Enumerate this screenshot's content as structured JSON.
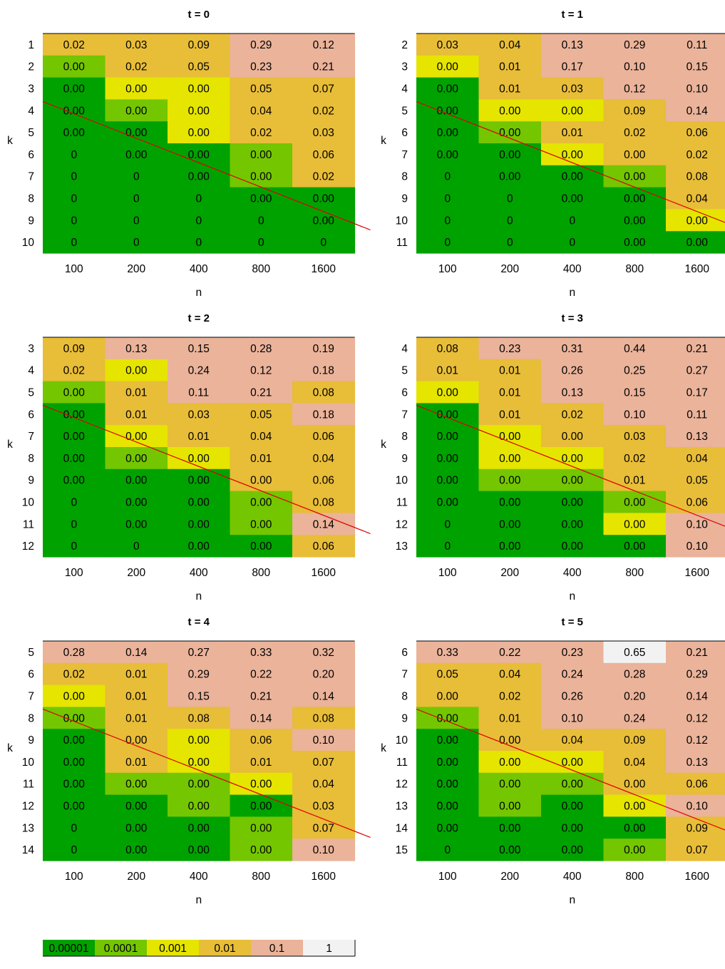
{
  "colorscale": {
    "labels": [
      "0.00001",
      "0.0001",
      "0.001",
      "0.01",
      "0.1",
      "1"
    ],
    "colors": [
      "#00a200",
      "#74c600",
      "#e5e500",
      "#e8bd38",
      "#eab39a",
      "#f2f2f2"
    ]
  },
  "chart_data": [
    {
      "type": "heatmap",
      "title": "t = 0",
      "xlabel": "n",
      "ylabel": "k",
      "x": [
        "100",
        "200",
        "400",
        "800",
        "1600"
      ],
      "y": [
        "1",
        "2",
        "3",
        "4",
        "5",
        "6",
        "7",
        "8",
        "9",
        "10"
      ],
      "values": [
        [
          "0.02",
          "0.03",
          "0.09",
          "0.29",
          "0.12"
        ],
        [
          "0.00",
          "0.02",
          "0.05",
          "0.23",
          "0.21"
        ],
        [
          "0.00",
          "0.00",
          "0.00",
          "0.05",
          "0.07"
        ],
        [
          "0.00",
          "0.00",
          "0.00",
          "0.04",
          "0.02"
        ],
        [
          "0.00",
          "0.00",
          "0.00",
          "0.02",
          "0.03"
        ],
        [
          "0",
          "0.00",
          "0.00",
          "0.00",
          "0.06"
        ],
        [
          "0",
          "0",
          "0.00",
          "0.00",
          "0.02"
        ],
        [
          "0",
          "0",
          "0",
          "0.00",
          "0.00"
        ],
        [
          "0",
          "0",
          "0",
          "0",
          "0.00"
        ],
        [
          "0",
          "0",
          "0",
          "0",
          "0"
        ]
      ],
      "levels": [
        [
          3,
          3,
          3,
          4,
          4
        ],
        [
          1,
          3,
          3,
          4,
          4
        ],
        [
          0,
          2,
          2,
          3,
          3
        ],
        [
          0,
          1,
          2,
          3,
          3
        ],
        [
          0,
          0,
          2,
          3,
          3
        ],
        [
          0,
          0,
          0,
          1,
          3
        ],
        [
          0,
          0,
          0,
          1,
          3
        ],
        [
          0,
          0,
          0,
          0,
          0
        ],
        [
          0,
          0,
          0,
          0,
          0
        ],
        [
          0,
          0,
          0,
          0,
          0
        ]
      ],
      "trend_line": [
        [
          100,
          3.6
        ],
        [
          1600,
          8.05
        ]
      ]
    },
    {
      "type": "heatmap",
      "title": "t = 1",
      "xlabel": "n",
      "ylabel": "k",
      "x": [
        "100",
        "200",
        "400",
        "800",
        "1600"
      ],
      "y": [
        "2",
        "3",
        "4",
        "5",
        "6",
        "7",
        "8",
        "9",
        "10",
        "11"
      ],
      "values": [
        [
          "0.03",
          "0.04",
          "0.13",
          "0.29",
          "0.11"
        ],
        [
          "0.00",
          "0.01",
          "0.17",
          "0.10",
          "0.15"
        ],
        [
          "0.00",
          "0.01",
          "0.03",
          "0.12",
          "0.10"
        ],
        [
          "0.00",
          "0.00",
          "0.00",
          "0.09",
          "0.14"
        ],
        [
          "0.00",
          "0.00",
          "0.01",
          "0.02",
          "0.06"
        ],
        [
          "0.00",
          "0.00",
          "0.00",
          "0.00",
          "0.02"
        ],
        [
          "0",
          "0.00",
          "0.00",
          "0.00",
          "0.08"
        ],
        [
          "0",
          "0",
          "0.00",
          "0.00",
          "0.04"
        ],
        [
          "0",
          "0",
          "0",
          "0.00",
          "0.00"
        ],
        [
          "0",
          "0",
          "0",
          "0.00",
          "0.00"
        ]
      ],
      "levels": [
        [
          3,
          3,
          4,
          4,
          4
        ],
        [
          2,
          3,
          4,
          4,
          4
        ],
        [
          0,
          3,
          3,
          4,
          4
        ],
        [
          0,
          2,
          2,
          3,
          4
        ],
        [
          0,
          1,
          3,
          3,
          3
        ],
        [
          0,
          0,
          2,
          3,
          3
        ],
        [
          0,
          0,
          0,
          1,
          3
        ],
        [
          0,
          0,
          0,
          0,
          3
        ],
        [
          0,
          0,
          0,
          0,
          2
        ],
        [
          0,
          0,
          0,
          0,
          0
        ]
      ],
      "trend_line": [
        [
          100,
          4.6
        ],
        [
          1600,
          9.05
        ]
      ]
    },
    {
      "type": "heatmap",
      "title": "t = 2",
      "xlabel": "n",
      "ylabel": "k",
      "x": [
        "100",
        "200",
        "400",
        "800",
        "1600"
      ],
      "y": [
        "3",
        "4",
        "5",
        "6",
        "7",
        "8",
        "9",
        "10",
        "11",
        "12"
      ],
      "values": [
        [
          "0.09",
          "0.13",
          "0.15",
          "0.28",
          "0.19"
        ],
        [
          "0.02",
          "0.00",
          "0.24",
          "0.12",
          "0.18"
        ],
        [
          "0.00",
          "0.01",
          "0.11",
          "0.21",
          "0.08"
        ],
        [
          "0.00",
          "0.01",
          "0.03",
          "0.05",
          "0.18"
        ],
        [
          "0.00",
          "0.00",
          "0.01",
          "0.04",
          "0.06"
        ],
        [
          "0.00",
          "0.00",
          "0.00",
          "0.01",
          "0.04"
        ],
        [
          "0.00",
          "0.00",
          "0.00",
          "0.00",
          "0.06"
        ],
        [
          "0",
          "0.00",
          "0.00",
          "0.00",
          "0.08"
        ],
        [
          "0",
          "0.00",
          "0.00",
          "0.00",
          "0.14"
        ],
        [
          "0",
          "0",
          "0.00",
          "0.00",
          "0.06"
        ]
      ],
      "levels": [
        [
          3,
          4,
          4,
          4,
          4
        ],
        [
          3,
          2,
          4,
          4,
          4
        ],
        [
          1,
          3,
          4,
          4,
          3
        ],
        [
          0,
          3,
          3,
          3,
          4
        ],
        [
          0,
          2,
          3,
          3,
          3
        ],
        [
          0,
          1,
          2,
          3,
          3
        ],
        [
          0,
          0,
          0,
          3,
          3
        ],
        [
          0,
          0,
          0,
          1,
          3
        ],
        [
          0,
          0,
          0,
          1,
          4
        ],
        [
          0,
          0,
          0,
          0,
          3
        ]
      ],
      "trend_line": [
        [
          100,
          5.6
        ],
        [
          1600,
          10.05
        ]
      ]
    },
    {
      "type": "heatmap",
      "title": "t = 3",
      "xlabel": "n",
      "ylabel": "k",
      "x": [
        "100",
        "200",
        "400",
        "800",
        "1600"
      ],
      "y": [
        "4",
        "5",
        "6",
        "7",
        "8",
        "9",
        "10",
        "11",
        "12",
        "13"
      ],
      "values": [
        [
          "0.08",
          "0.23",
          "0.31",
          "0.44",
          "0.21"
        ],
        [
          "0.01",
          "0.01",
          "0.26",
          "0.25",
          "0.27"
        ],
        [
          "0.00",
          "0.01",
          "0.13",
          "0.15",
          "0.17"
        ],
        [
          "0.00",
          "0.01",
          "0.02",
          "0.10",
          "0.11"
        ],
        [
          "0.00",
          "0.00",
          "0.00",
          "0.03",
          "0.13"
        ],
        [
          "0.00",
          "0.00",
          "0.00",
          "0.02",
          "0.04"
        ],
        [
          "0.00",
          "0.00",
          "0.00",
          "0.01",
          "0.05"
        ],
        [
          "0.00",
          "0.00",
          "0.00",
          "0.00",
          "0.06"
        ],
        [
          "0",
          "0.00",
          "0.00",
          "0.00",
          "0.10"
        ],
        [
          "0",
          "0.00",
          "0.00",
          "0.00",
          "0.10"
        ]
      ],
      "levels": [
        [
          3,
          4,
          4,
          4,
          4
        ],
        [
          3,
          3,
          4,
          4,
          4
        ],
        [
          2,
          3,
          4,
          4,
          4
        ],
        [
          0,
          3,
          3,
          4,
          4
        ],
        [
          0,
          2,
          3,
          3,
          4
        ],
        [
          0,
          2,
          2,
          3,
          3
        ],
        [
          0,
          1,
          1,
          3,
          3
        ],
        [
          0,
          0,
          0,
          1,
          3
        ],
        [
          0,
          0,
          0,
          2,
          4
        ],
        [
          0,
          0,
          0,
          0,
          4
        ]
      ],
      "trend_line": [
        [
          100,
          6.6
        ],
        [
          1600,
          11.05
        ]
      ]
    },
    {
      "type": "heatmap",
      "title": "t = 4",
      "xlabel": "n",
      "ylabel": "k",
      "x": [
        "100",
        "200",
        "400",
        "800",
        "1600"
      ],
      "y": [
        "5",
        "6",
        "7",
        "8",
        "9",
        "10",
        "11",
        "12",
        "13",
        "14"
      ],
      "values": [
        [
          "0.28",
          "0.14",
          "0.27",
          "0.33",
          "0.32"
        ],
        [
          "0.02",
          "0.01",
          "0.29",
          "0.22",
          "0.20"
        ],
        [
          "0.00",
          "0.01",
          "0.15",
          "0.21",
          "0.14"
        ],
        [
          "0.00",
          "0.01",
          "0.08",
          "0.14",
          "0.08"
        ],
        [
          "0.00",
          "0.00",
          "0.00",
          "0.06",
          "0.10"
        ],
        [
          "0.00",
          "0.01",
          "0.00",
          "0.01",
          "0.07"
        ],
        [
          "0.00",
          "0.00",
          "0.00",
          "0.00",
          "0.04"
        ],
        [
          "0.00",
          "0.00",
          "0.00",
          "0.00",
          "0.03"
        ],
        [
          "0",
          "0.00",
          "0.00",
          "0.00",
          "0.07"
        ],
        [
          "0",
          "0.00",
          "0.00",
          "0.00",
          "0.10"
        ]
      ],
      "levels": [
        [
          4,
          4,
          4,
          4,
          4
        ],
        [
          3,
          3,
          4,
          4,
          4
        ],
        [
          2,
          3,
          4,
          4,
          4
        ],
        [
          1,
          3,
          3,
          4,
          3
        ],
        [
          0,
          3,
          2,
          3,
          4
        ],
        [
          0,
          3,
          2,
          3,
          3
        ],
        [
          0,
          1,
          1,
          2,
          3
        ],
        [
          0,
          0,
          1,
          0,
          3
        ],
        [
          0,
          0,
          0,
          1,
          3
        ],
        [
          0,
          0,
          0,
          1,
          4
        ]
      ],
      "trend_line": [
        [
          100,
          7.6
        ],
        [
          1600,
          12.05
        ]
      ]
    },
    {
      "type": "heatmap",
      "title": "t = 5",
      "xlabel": "n",
      "ylabel": "k",
      "x": [
        "100",
        "200",
        "400",
        "800",
        "1600"
      ],
      "y": [
        "6",
        "7",
        "8",
        "9",
        "10",
        "11",
        "12",
        "13",
        "14",
        "15"
      ],
      "values": [
        [
          "0.33",
          "0.22",
          "0.23",
          "0.65",
          "0.21"
        ],
        [
          "0.05",
          "0.04",
          "0.24",
          "0.28",
          "0.29"
        ],
        [
          "0.00",
          "0.02",
          "0.26",
          "0.20",
          "0.14"
        ],
        [
          "0.00",
          "0.01",
          "0.10",
          "0.24",
          "0.12"
        ],
        [
          "0.00",
          "0.00",
          "0.04",
          "0.09",
          "0.12"
        ],
        [
          "0.00",
          "0.00",
          "0.00",
          "0.04",
          "0.13"
        ],
        [
          "0.00",
          "0.00",
          "0.00",
          "0.00",
          "0.06"
        ],
        [
          "0.00",
          "0.00",
          "0.00",
          "0.00",
          "0.10"
        ],
        [
          "0.00",
          "0.00",
          "0.00",
          "0.00",
          "0.09"
        ],
        [
          "0",
          "0.00",
          "0.00",
          "0.00",
          "0.07"
        ]
      ],
      "levels": [
        [
          4,
          4,
          4,
          5,
          4
        ],
        [
          3,
          3,
          4,
          4,
          4
        ],
        [
          3,
          3,
          4,
          4,
          4
        ],
        [
          1,
          3,
          4,
          4,
          4
        ],
        [
          0,
          3,
          3,
          3,
          4
        ],
        [
          0,
          2,
          2,
          3,
          4
        ],
        [
          0,
          1,
          1,
          3,
          3
        ],
        [
          0,
          1,
          0,
          2,
          4
        ],
        [
          0,
          0,
          0,
          0,
          3
        ],
        [
          0,
          0,
          0,
          1,
          3
        ]
      ],
      "trend_line": [
        [
          100,
          8.6
        ],
        [
          1600,
          13.05
        ]
      ]
    }
  ]
}
